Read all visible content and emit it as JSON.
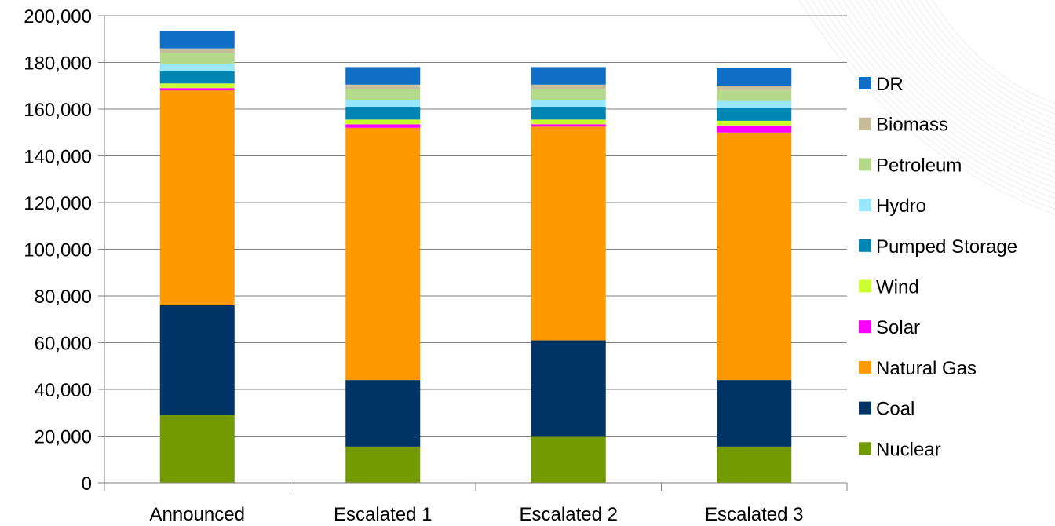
{
  "chart_data": {
    "type": "bar",
    "stacked": true,
    "categories": [
      "Announced",
      "Escalated 1",
      "Escalated 2",
      "Escalated 3"
    ],
    "ylim": [
      0,
      200000
    ],
    "yticks": [
      0,
      20000,
      40000,
      60000,
      80000,
      100000,
      120000,
      140000,
      160000,
      180000,
      200000
    ],
    "ytick_labels": [
      "0",
      "20,000",
      "40,000",
      "60,000",
      "80,000",
      "100,000",
      "120,000",
      "140,000",
      "160,000",
      "180,000",
      "200,000"
    ],
    "grid": true,
    "legend_position": "right",
    "series": [
      {
        "name": "Nuclear",
        "color": "#739b00",
        "values": [
          29000,
          15500,
          20000,
          15500
        ]
      },
      {
        "name": "Coal",
        "color": "#003366",
        "values": [
          47000,
          28500,
          41000,
          28500
        ]
      },
      {
        "name": "Natural Gas",
        "color": "#ff9900",
        "values": [
          92000,
          108000,
          91500,
          106000
        ]
      },
      {
        "name": "Solar",
        "color": "#ff00ff",
        "values": [
          1000,
          1500,
          1000,
          3000
        ]
      },
      {
        "name": "Wind",
        "color": "#ccff33",
        "values": [
          2000,
          2000,
          2000,
          2000
        ]
      },
      {
        "name": "Pumped Storage",
        "color": "#0085b2",
        "values": [
          5500,
          5500,
          5500,
          5500
        ]
      },
      {
        "name": "Hydro",
        "color": "#99e6ff",
        "values": [
          3000,
          3000,
          3000,
          3000
        ]
      },
      {
        "name": "Petroleum",
        "color": "#b5d98a",
        "values": [
          4500,
          4500,
          4500,
          4500
        ]
      },
      {
        "name": "Biomass",
        "color": "#c4bd97",
        "values": [
          2000,
          2000,
          2000,
          2000
        ]
      },
      {
        "name": "DR",
        "color": "#0f6fc6",
        "values": [
          7500,
          7500,
          7500,
          7500
        ]
      }
    ]
  }
}
